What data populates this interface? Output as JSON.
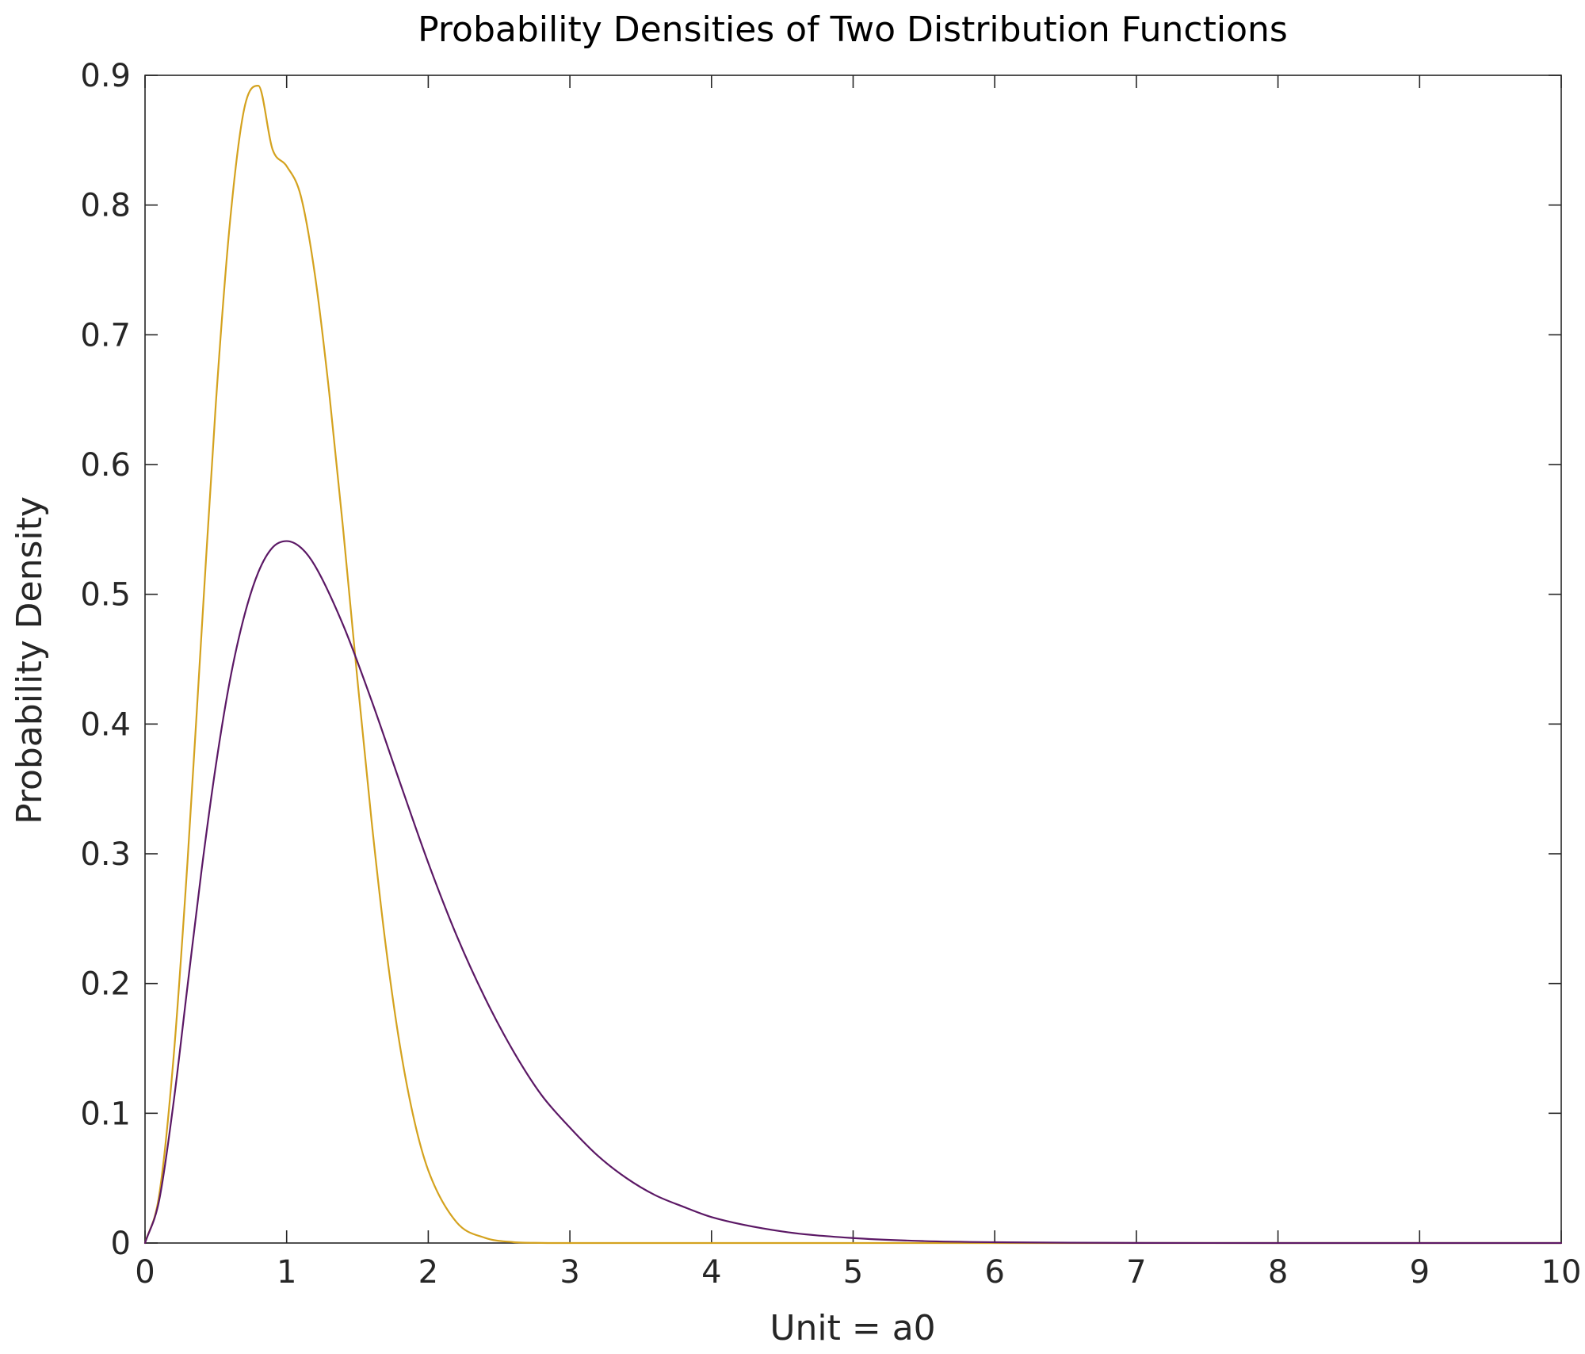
{
  "chart_data": {
    "type": "line",
    "title": "Probability Densities of Two Distribution Functions",
    "xlabel": "Unit = a0",
    "ylabel": "Probability Density",
    "xlim": [
      0,
      10
    ],
    "ylim": [
      0,
      0.9
    ],
    "grid": false,
    "legend": "none",
    "x_ticks": [
      "0",
      "1",
      "2",
      "3",
      "4",
      "5",
      "6",
      "7",
      "8",
      "9",
      "10"
    ],
    "y_ticks": [
      "0",
      "0.1",
      "0.2",
      "0.3",
      "0.4",
      "0.5",
      "0.6",
      "0.7",
      "0.8",
      "0.9"
    ],
    "series": [
      {
        "color": "#D4A21E",
        "x": [
          0,
          0.1,
          0.2,
          0.3,
          0.4,
          0.5,
          0.6,
          0.7,
          0.8,
          0.9,
          1.0,
          1.1,
          1.2,
          1.3,
          1.4,
          1.5,
          1.6,
          1.7,
          1.8,
          1.9,
          2.0,
          2.2,
          2.4,
          2.6,
          2.8,
          3.0,
          3.2,
          3.5,
          4.0,
          5.0,
          6.0,
          8.0,
          10.0
        ],
        "y": [
          0,
          0.037,
          0.141,
          0.294,
          0.472,
          0.647,
          0.787,
          0.874,
          0.892,
          0.843,
          0.83,
          0.807,
          0.746,
          0.656,
          0.549,
          0.434,
          0.325,
          0.229,
          0.152,
          0.095,
          0.056,
          0.016,
          0.004,
          0.0007,
          0.0001,
          1e-05,
          0,
          0,
          0,
          0,
          0,
          0,
          0
        ]
      },
      {
        "color": "#5B1865",
        "x": [
          0,
          0.1,
          0.2,
          0.3,
          0.4,
          0.5,
          0.6,
          0.7,
          0.8,
          0.9,
          1.0,
          1.1,
          1.2,
          1.4,
          1.6,
          1.8,
          2.0,
          2.2,
          2.4,
          2.6,
          2.8,
          3.0,
          3.2,
          3.4,
          3.6,
          3.8,
          4.0,
          4.5,
          5.0,
          5.5,
          6.0,
          7.0,
          8.0,
          9.0,
          10.0
        ],
        "y": [
          0,
          0.033,
          0.107,
          0.198,
          0.288,
          0.368,
          0.434,
          0.483,
          0.517,
          0.536,
          0.541,
          0.536,
          0.522,
          0.476,
          0.418,
          0.355,
          0.293,
          0.237,
          0.189,
          0.148,
          0.114,
          0.089,
          0.067,
          0.05,
          0.037,
          0.028,
          0.02,
          0.0089,
          0.0038,
          0.0015,
          0.0006,
          0.0001,
          2e-05,
          0,
          0
        ]
      }
    ]
  }
}
